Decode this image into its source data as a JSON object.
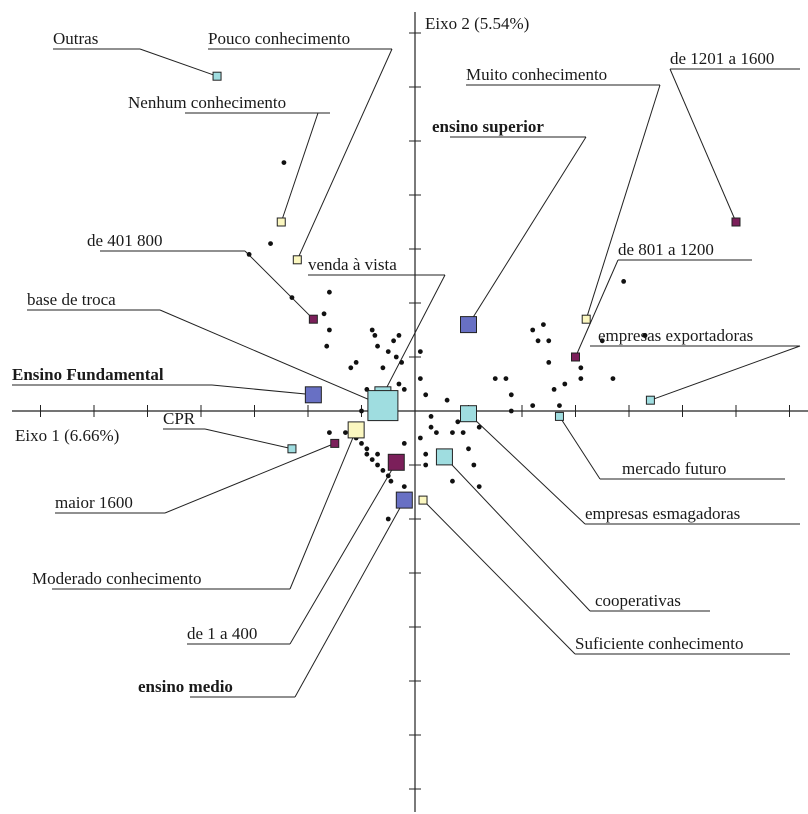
{
  "chart_data": {
    "type": "scatter",
    "x_axis_label": "Eixo 1 (6.66%)",
    "y_axis_label": "Eixo 2 (5.54%)",
    "xlim": [
      -7.5,
      7.5
    ],
    "ylim": [
      -7.5,
      7.2
    ],
    "grid": false,
    "colors": {
      "cyan": "#9fdde0",
      "purple": "#7b1f5a",
      "blue": "#6870c4",
      "yellow": "#fbf7c0",
      "dot": "#111111"
    },
    "categories": [
      {
        "label": "Outras",
        "x": -3.7,
        "y": 6.2,
        "size": "small",
        "color": "cyan",
        "bold": false
      },
      {
        "label": "Pouco conhecimento",
        "x": -2.2,
        "y": 2.8,
        "size": "small",
        "color": "yellow",
        "bold": false
      },
      {
        "label": "Nenhum conhecimento",
        "x": -2.5,
        "y": 3.5,
        "size": "small",
        "color": "yellow",
        "bold": false
      },
      {
        "label": "ensino superior",
        "x": 1.0,
        "y": 1.6,
        "size": "medium",
        "color": "blue",
        "bold": true
      },
      {
        "label": "Muito conhecimento",
        "x": 3.2,
        "y": 1.7,
        "size": "small",
        "color": "yellow",
        "bold": false
      },
      {
        "label": "de 1201 a 1600",
        "x": 6.0,
        "y": 3.5,
        "size": "small",
        "color": "purple",
        "bold": false
      },
      {
        "label": "de 401 800",
        "x": -1.9,
        "y": 1.7,
        "size": "small",
        "color": "purple",
        "bold": false
      },
      {
        "label": "venda à vista",
        "x": -0.6,
        "y": 0.3,
        "size": "medium",
        "color": "cyan",
        "bold": false
      },
      {
        "label": "de 801 a 1200",
        "x": 3.0,
        "y": 1.0,
        "size": "small",
        "color": "purple",
        "bold": false
      },
      {
        "label": "base de troca",
        "x": -0.6,
        "y": 0.1,
        "size": "large",
        "color": "cyan",
        "bold": false
      },
      {
        "label": "empresas exportadoras",
        "x": 4.4,
        "y": 0.2,
        "size": "small",
        "color": "cyan",
        "bold": false
      },
      {
        "label": "Ensino Fundamental",
        "x": -1.9,
        "y": 0.3,
        "size": "medium",
        "color": "blue",
        "bold": true
      },
      {
        "label": "CPR",
        "x": -2.3,
        "y": -0.7,
        "size": "small",
        "color": "cyan",
        "bold": false
      },
      {
        "label": "mercado futuro",
        "x": 2.7,
        "y": -0.1,
        "size": "small",
        "color": "cyan",
        "bold": false
      },
      {
        "label": "maior 1600",
        "x": -1.5,
        "y": -0.6,
        "size": "small",
        "color": "purple",
        "bold": false
      },
      {
        "label": "empresas esmagadoras",
        "x": 1.0,
        "y": -0.05,
        "size": "medium",
        "color": "cyan",
        "bold": false
      },
      {
        "label": "Moderado conhecimento",
        "x": -1.1,
        "y": -0.35,
        "size": "medium",
        "color": "yellow",
        "bold": false
      },
      {
        "label": "cooperativas",
        "x": 0.55,
        "y": -0.85,
        "size": "medium",
        "color": "cyan",
        "bold": false
      },
      {
        "label": "de 1 a 400",
        "x": -0.35,
        "y": -0.95,
        "size": "medium",
        "color": "purple",
        "bold": false
      },
      {
        "label": "Suficiente conhecimento",
        "x": 0.15,
        "y": -1.65,
        "size": "small",
        "color": "yellow",
        "bold": false
      },
      {
        "label": "ensino medio",
        "x": -0.2,
        "y": -1.65,
        "size": "medium",
        "color": "blue",
        "bold": true
      }
    ],
    "points": [
      [
        -2.45,
        4.6
      ],
      [
        -2.7,
        3.1
      ],
      [
        -3.1,
        2.9
      ],
      [
        -2.3,
        2.1
      ],
      [
        -1.6,
        2.2
      ],
      [
        -1.7,
        1.8
      ],
      [
        -1.6,
        1.5
      ],
      [
        -1.65,
        1.2
      ],
      [
        -0.8,
        1.5
      ],
      [
        -0.75,
        1.4
      ],
      [
        -0.4,
        1.3
      ],
      [
        -0.3,
        1.4
      ],
      [
        -0.7,
        1.2
      ],
      [
        -0.5,
        1.1
      ],
      [
        -0.35,
        1.0
      ],
      [
        -0.25,
        0.9
      ],
      [
        -1.1,
        0.9
      ],
      [
        -1.2,
        0.8
      ],
      [
        -0.6,
        0.8
      ],
      [
        0.1,
        1.1
      ],
      [
        0.1,
        0.6
      ],
      [
        -0.2,
        0.4
      ],
      [
        -0.3,
        0.5
      ],
      [
        0.2,
        0.3
      ],
      [
        -0.9,
        0.4
      ],
      [
        -0.8,
        0.1
      ],
      [
        -1.0,
        0.0
      ],
      [
        0.3,
        -0.1
      ],
      [
        0.6,
        0.2
      ],
      [
        0.8,
        -0.2
      ],
      [
        1.5,
        0.6
      ],
      [
        1.7,
        0.6
      ],
      [
        1.8,
        0.3
      ],
      [
        2.2,
        1.5
      ],
      [
        2.3,
        1.3
      ],
      [
        2.4,
        1.6
      ],
      [
        2.5,
        1.3
      ],
      [
        2.5,
        0.9
      ],
      [
        2.6,
        0.4
      ],
      [
        2.8,
        0.5
      ],
      [
        3.1,
        0.8
      ],
      [
        3.1,
        0.6
      ],
      [
        3.5,
        1.3
      ],
      [
        3.9,
        2.4
      ],
      [
        4.3,
        1.4
      ],
      [
        3.7,
        0.6
      ],
      [
        2.7,
        0.1
      ],
      [
        1.8,
        0.0
      ],
      [
        2.2,
        0.1
      ],
      [
        -1.6,
        -0.4
      ],
      [
        -1.3,
        -0.4
      ],
      [
        -1.1,
        -0.5
      ],
      [
        -1.0,
        -0.6
      ],
      [
        -0.9,
        -0.7
      ],
      [
        -0.9,
        -0.8
      ],
      [
        -0.8,
        -0.9
      ],
      [
        -0.7,
        -0.8
      ],
      [
        -0.7,
        -1.0
      ],
      [
        -0.6,
        -1.1
      ],
      [
        -0.5,
        -1.2
      ],
      [
        -0.45,
        -1.3
      ],
      [
        -0.2,
        -0.6
      ],
      [
        0.1,
        -0.5
      ],
      [
        0.3,
        -0.3
      ],
      [
        0.4,
        -0.4
      ],
      [
        0.7,
        -0.4
      ],
      [
        0.9,
        -0.4
      ],
      [
        1.0,
        -0.7
      ],
      [
        1.1,
        -1.0
      ],
      [
        1.2,
        -0.3
      ],
      [
        0.7,
        -1.3
      ],
      [
        1.2,
        -1.4
      ],
      [
        0.2,
        -1.0
      ],
      [
        -0.5,
        -2.0
      ],
      [
        -0.2,
        -1.4
      ],
      [
        0.2,
        -0.8
      ]
    ]
  }
}
